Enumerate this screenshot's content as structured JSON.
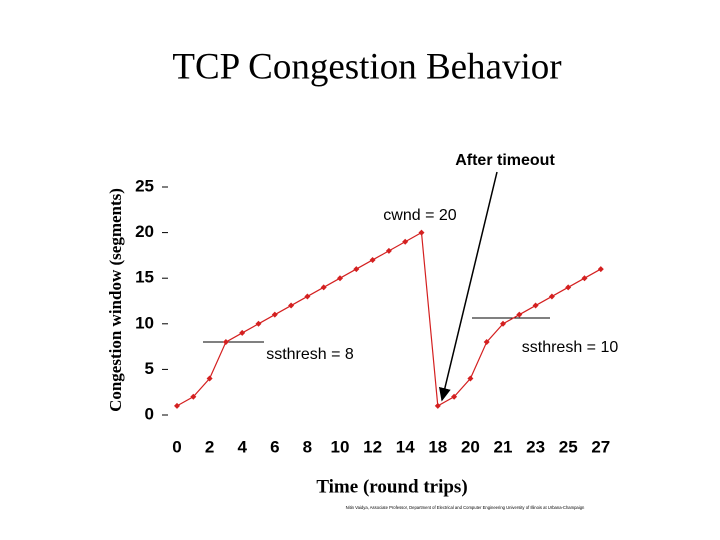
{
  "chart_data": {
    "type": "line",
    "title": "TCP Congestion Behavior",
    "x_label": "Time (round trips)",
    "y_label": "Congestion window (segments)",
    "categories": [
      "0",
      null,
      "2",
      null,
      "4",
      null,
      "6",
      null,
      "8",
      null,
      "10",
      null,
      "12",
      null,
      "14",
      null,
      "18",
      null,
      "20",
      null,
      "21",
      null,
      "23",
      null,
      "25",
      null,
      "27"
    ],
    "series": [
      {
        "name": "cwnd",
        "color": "#d42020",
        "values": [
          1,
          2,
          4,
          8,
          9,
          10,
          11,
          12,
          13,
          14,
          15,
          16,
          17,
          18,
          19,
          20,
          1,
          2,
          4,
          8,
          10,
          11,
          12,
          13,
          14,
          15,
          16
        ]
      }
    ],
    "ylim": [
      0,
      25
    ],
    "yticks": [
      0,
      5,
      10,
      15,
      20,
      25
    ],
    "annotations": [
      "After timeout",
      "cwnd = 20",
      "ssthresh = 8",
      "ssthresh = 10"
    ],
    "footer": "Nitin Vaidya, Associate Professor, Department of Electrical and Computer Engineering University of Illinois at Urbana-Champaign"
  }
}
